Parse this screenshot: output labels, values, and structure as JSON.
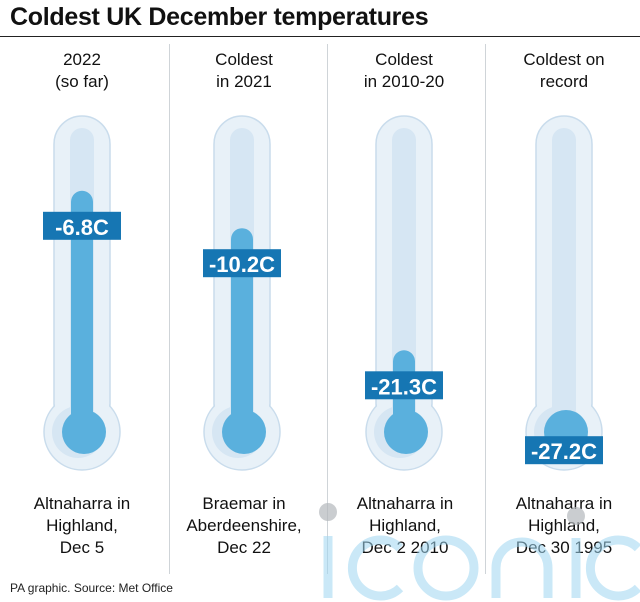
{
  "title": "Coldest UK December temperatures",
  "source": "PA graphic. Source: Met Office",
  "watermark_text": "iconic",
  "colors": {
    "tube_outer": "#e8f1f8",
    "tube_border": "#c9dcec",
    "tube_inner": "#d6e6f3",
    "mercury": "#5ab0dd",
    "label_bg": "#1676b3",
    "label_text": "#ffffff"
  },
  "columns": [
    {
      "header": [
        "2022",
        "(so far)"
      ],
      "value_label": "-6.8C",
      "footer": [
        "Altnaharra in",
        "Highland,",
        "Dec 5"
      ]
    },
    {
      "header": [
        "Coldest",
        "in 2021"
      ],
      "value_label": "-10.2C",
      "footer": [
        "Braemar in",
        "Aberdeenshire,",
        "Dec 22"
      ]
    },
    {
      "header": [
        "Coldest",
        "in 2010-20"
      ],
      "value_label": "-21.3C",
      "footer": [
        "Altnaharra in",
        "Highland,",
        "Dec 2 2010"
      ]
    },
    {
      "header": [
        "Coldest on",
        "record"
      ],
      "value_label": "-27.2C",
      "footer": [
        "Altnaharra in",
        "Highland,",
        "Dec 30 1995"
      ]
    }
  ],
  "chart_data": {
    "type": "bar",
    "title": "Coldest UK December temperatures",
    "categories": [
      "2022 (so far)",
      "Coldest in 2021",
      "Coldest in 2010-20",
      "Coldest on record"
    ],
    "values": [
      -6.8,
      -10.2,
      -21.3,
      -27.2
    ],
    "unit": "C",
    "locations": [
      "Altnaharra in Highland, Dec 5",
      "Braemar in Aberdeenshire, Dec 22",
      "Altnaharra in Highland, Dec 2 2010",
      "Altnaharra in Highland, Dec 30 1995"
    ],
    "ylim": [
      -30,
      0
    ],
    "grid": false,
    "legend": "none"
  }
}
